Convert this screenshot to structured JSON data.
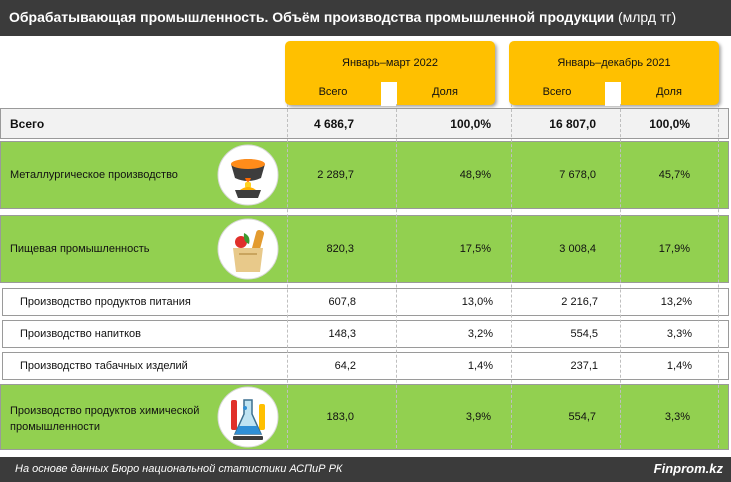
{
  "header": {
    "title": "Обрабатывающая промышленность. Объём производства промышленной продукции",
    "unit": "(млрд тг)"
  },
  "periods": [
    {
      "title": "Январь–март 2022",
      "col_total": "Всего",
      "col_share": "Доля"
    },
    {
      "title": "Январь–декабрь 2021",
      "col_total": "Всего",
      "col_share": "Доля"
    }
  ],
  "chart_data": {
    "type": "table",
    "title": "Обрабатывающая промышленность. Объём производства промышленной продукции (млрд тг)",
    "columns": [
      "Январь–март 2022 Всего",
      "Январь–март 2022 Доля",
      "Январь–декабрь 2021 Всего",
      "Январь–декабрь 2021 Доля"
    ],
    "rows": [
      {
        "label": "Всего",
        "kind": "total",
        "values": [
          "4 686,7",
          "100,0%",
          "16 807,0",
          "100,0%"
        ]
      },
      {
        "label": "Металлургическое производство",
        "kind": "green",
        "icon": "metal-ladle-icon",
        "values": [
          "2 289,7",
          "48,9%",
          "7 678,0",
          "45,7%"
        ]
      },
      {
        "label": "Пищевая промышленность",
        "kind": "green",
        "icon": "grocery-bag-icon",
        "values": [
          "820,3",
          "17,5%",
          "3 008,4",
          "17,9%"
        ]
      },
      {
        "label": "Производство продуктов питания",
        "kind": "sub",
        "values": [
          "607,8",
          "13,0%",
          "2 216,7",
          "13,2%"
        ]
      },
      {
        "label": "Производство напитков",
        "kind": "sub",
        "values": [
          "148,3",
          "3,2%",
          "554,5",
          "3,3%"
        ]
      },
      {
        "label": "Производство табачных изделий",
        "kind": "sub",
        "values": [
          "64,2",
          "1,4%",
          "237,1",
          "1,4%"
        ]
      },
      {
        "label": "Производство продуктов химической промышленности",
        "label_lines": [
          "Производство продуктов химической",
          "промышленности"
        ],
        "kind": "green",
        "icon": "chemistry-flask-icon",
        "values": [
          "183,0",
          "3,9%",
          "554,7",
          "3,3%"
        ]
      }
    ]
  },
  "footer": {
    "source": "На основе данных Бюро национальной статистики АСПиР РК",
    "brand": "Finprom.kz"
  }
}
